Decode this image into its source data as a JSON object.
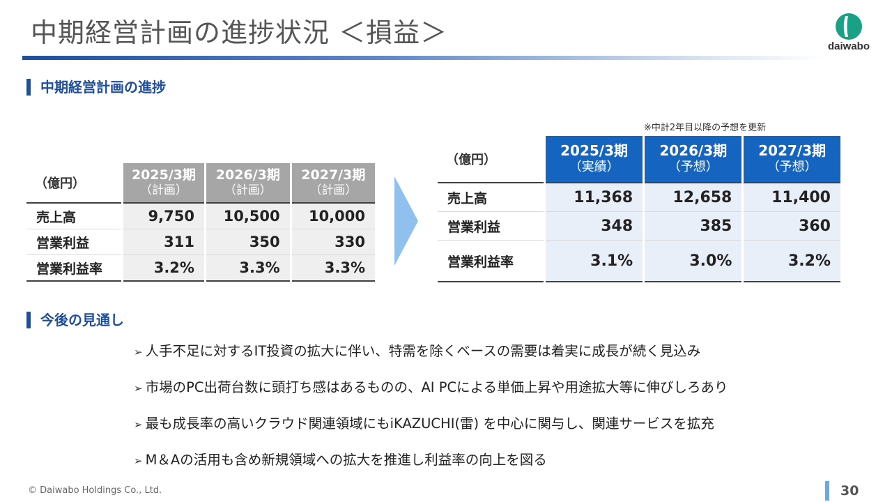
{
  "header": {
    "title": "中期経営計画の進捗状況 ＜損益＞",
    "logo_text": "daiwabo"
  },
  "section1": {
    "heading": "中期経営計画の進捗",
    "note": "※中計2年目以降の予想を更新"
  },
  "plan_table": {
    "unit": "（億円）",
    "columns": [
      {
        "year": "2025/3期",
        "sub": "（計画）"
      },
      {
        "year": "2026/3期",
        "sub": "（計画）"
      },
      {
        "year": "2027/3期",
        "sub": "（計画）"
      }
    ],
    "rows": [
      {
        "label": "売上高",
        "values": [
          "9,750",
          "10,500",
          "10,000"
        ]
      },
      {
        "label": "営業利益",
        "values": [
          "311",
          "350",
          "330"
        ]
      },
      {
        "label": "営業利益率",
        "values": [
          "3.2%",
          "3.3%",
          "3.3%"
        ]
      }
    ]
  },
  "forecast_table": {
    "unit": "（億円）",
    "columns": [
      {
        "year": "2025/3期",
        "sub": "（実績）"
      },
      {
        "year": "2026/3期",
        "sub": "（予想）"
      },
      {
        "year": "2027/3期",
        "sub": "（予想）"
      }
    ],
    "rows": [
      {
        "label": "売上高",
        "values": [
          "11,368",
          "12,658",
          "11,400"
        ]
      },
      {
        "label": "営業利益",
        "values": [
          "348",
          "385",
          "360"
        ]
      },
      {
        "label": "営業利益率",
        "values": [
          "3.1%",
          "3.0%",
          "3.2%"
        ]
      }
    ]
  },
  "section2": {
    "heading": "今後の見通し",
    "bullet_mark": "➢",
    "bullets": [
      "人手不足に対するIT投資の拡大に伴い、特需を除くベースの需要は着実に成長が続く見込み",
      "市場のPC出荷台数に頭打ち感はあるものの、AI PCによる単価上昇や用途拡大等に伸びしろあり",
      "最も成長率の高いクラウド関連領域にもiKAZUCHI(雷) を中心に関与し、関連サービスを拡充",
      "M＆Aの活用も含め新規領域への拡大を推進し利益率の向上を図る"
    ]
  },
  "footer": {
    "copyright": "© Daiwabo Holdings Co., Ltd.",
    "page_number": "30"
  },
  "colors": {
    "brand_blue": "#1f4e9c",
    "forecast_header": "#1565c0",
    "plan_header": "#a6a6a6",
    "logo_green": "#1aa084"
  }
}
